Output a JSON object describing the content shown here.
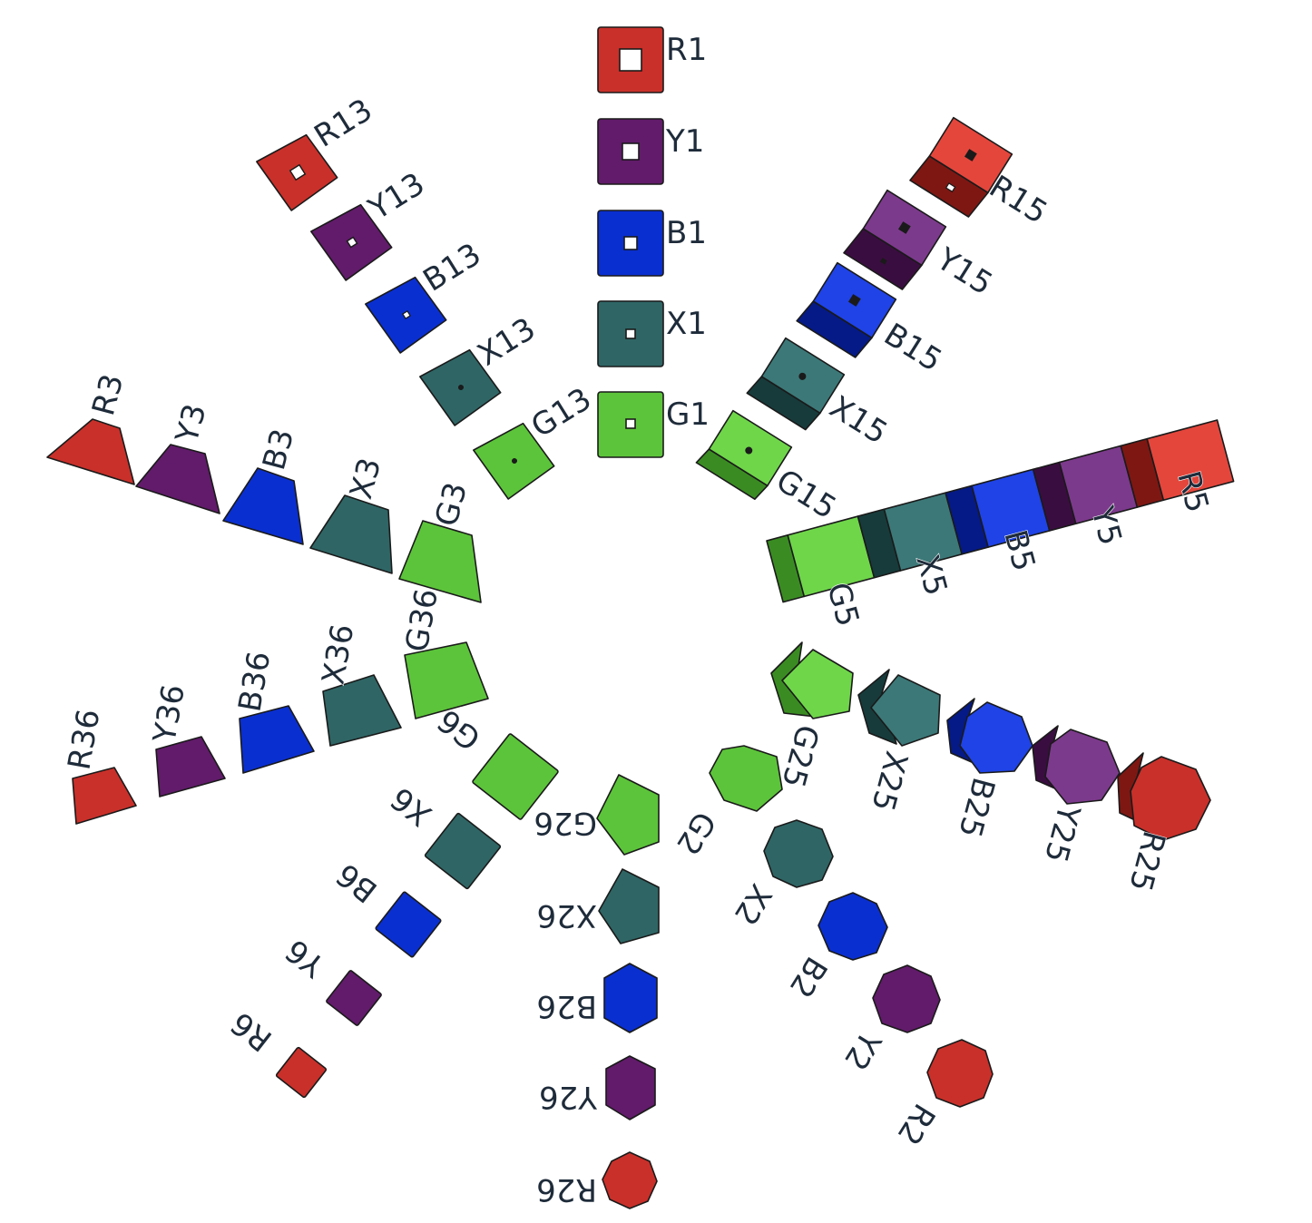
{
  "palette": {
    "R": {
      "main": "#c9302a",
      "light": "#e4463c",
      "dark": "#7e1712"
    },
    "Y": {
      "main": "#611b6a",
      "light": "#7c3a8c",
      "dark": "#3a0d40"
    },
    "B": {
      "main": "#0a2fd0",
      "light": "#1f43e6",
      "dark": "#051a86"
    },
    "X": {
      "main": "#2f6565",
      "light": "#3c7878",
      "dark": "#173b3b"
    },
    "G": {
      "main": "#5cc43a",
      "light": "#6fd64a",
      "dark": "#3a8c22"
    }
  },
  "groups": [
    {
      "id": "1",
      "shape": "square-hole",
      "labels": [
        "R1",
        "Y1",
        "B1",
        "X1",
        "G1"
      ]
    },
    {
      "id": "13",
      "shape": "square-dot",
      "labels": [
        "R13",
        "Y13",
        "B13",
        "X13",
        "G13"
      ]
    },
    {
      "id": "15",
      "shape": "prism-square",
      "labels": [
        "R15",
        "Y15",
        "B15",
        "X15",
        "G15"
      ]
    },
    {
      "id": "5",
      "shape": "bar-block",
      "labels": [
        "R5",
        "Y5",
        "B5",
        "X5",
        "G5"
      ]
    },
    {
      "id": "25",
      "shape": "prism-pentagon-hexagon",
      "labels": [
        "R25",
        "Y25",
        "B25",
        "X25",
        "G25"
      ]
    },
    {
      "id": "2",
      "shape": "polygon-hex-to-oct",
      "labels": [
        "R2",
        "Y2",
        "B2",
        "X2",
        "G2"
      ]
    },
    {
      "id": "26",
      "shape": "polygon-pent-to-hept",
      "labels": [
        "R26",
        "Y26",
        "B26",
        "X26",
        "G26"
      ]
    },
    {
      "id": "6",
      "shape": "square-rotated",
      "labels": [
        "R6",
        "Y6",
        "B6",
        "X6",
        "G6"
      ]
    },
    {
      "id": "36",
      "shape": "trapezoid-small",
      "labels": [
        "R36",
        "Y36",
        "B36",
        "X36",
        "G36"
      ]
    },
    {
      "id": "3",
      "shape": "trapezoid",
      "labels": [
        "R3",
        "Y3",
        "B3",
        "X3",
        "G3"
      ]
    }
  ]
}
